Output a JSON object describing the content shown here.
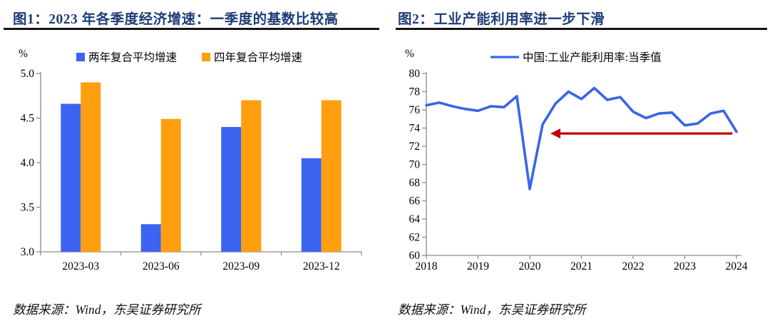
{
  "figures": [
    {
      "label": "图1:",
      "title": "图1：2023 年各季度经济增速：一季度的基数比较高",
      "unit": "%",
      "source": "数据来源：Wind，东吴证券研究所"
    },
    {
      "label": "图2:",
      "title": "图2：工业产能利用率进一步下滑",
      "unit": "%",
      "source": "数据来源：Wind，东吴证券研究所"
    }
  ],
  "chart_data": [
    {
      "type": "bar",
      "title": "2023 年各季度经济增速：一季度的基数比较高",
      "categories": [
        "2023-03",
        "2023-06",
        "2023-09",
        "2023-12"
      ],
      "series": [
        {
          "name": "两年复合平均增速",
          "color": "#3c64f0",
          "values": [
            4.66,
            3.31,
            4.4,
            4.05
          ]
        },
        {
          "name": "四年复合平均增速",
          "color": "#ff9f0f",
          "values": [
            4.9,
            4.49,
            4.7,
            4.7
          ]
        }
      ],
      "xlabel": "",
      "ylabel": "%",
      "ylim": [
        3.0,
        5.0
      ],
      "yticks": [
        3.0,
        3.5,
        4.0,
        4.5,
        5.0
      ],
      "ytick_decimals": 1,
      "grid": false,
      "legend_position": "top"
    },
    {
      "type": "line",
      "title": "工业产能利用率进一步下滑",
      "series": [
        {
          "name": "中国:工业产能利用率:当季值",
          "color": "#3a64ea",
          "x_start_year": 2018,
          "x_step_quarters": 1,
          "values": [
            76.5,
            76.8,
            76.4,
            76.1,
            75.9,
            76.4,
            76.3,
            77.5,
            67.3,
            74.4,
            76.7,
            78.0,
            77.2,
            78.4,
            77.1,
            77.4,
            75.8,
            75.1,
            75.6,
            75.7,
            74.3,
            74.5,
            75.6,
            75.9,
            73.6
          ]
        }
      ],
      "xlabel": "",
      "ylabel": "%",
      "xticks": [
        2018,
        2019,
        2020,
        2021,
        2022,
        2023,
        2024
      ],
      "xlim": [
        2018,
        2024
      ],
      "ylim": [
        60,
        80
      ],
      "yticks": [
        60,
        62,
        64,
        66,
        68,
        70,
        72,
        74,
        76,
        78,
        80
      ],
      "ytick_decimals": 0,
      "grid": false,
      "legend_position": "top",
      "annotation": {
        "type": "arrow-left",
        "color": "#c00000",
        "y": 73.4,
        "x_tail_year": 2023.92,
        "x_head_year": 2020.4
      }
    }
  ]
}
